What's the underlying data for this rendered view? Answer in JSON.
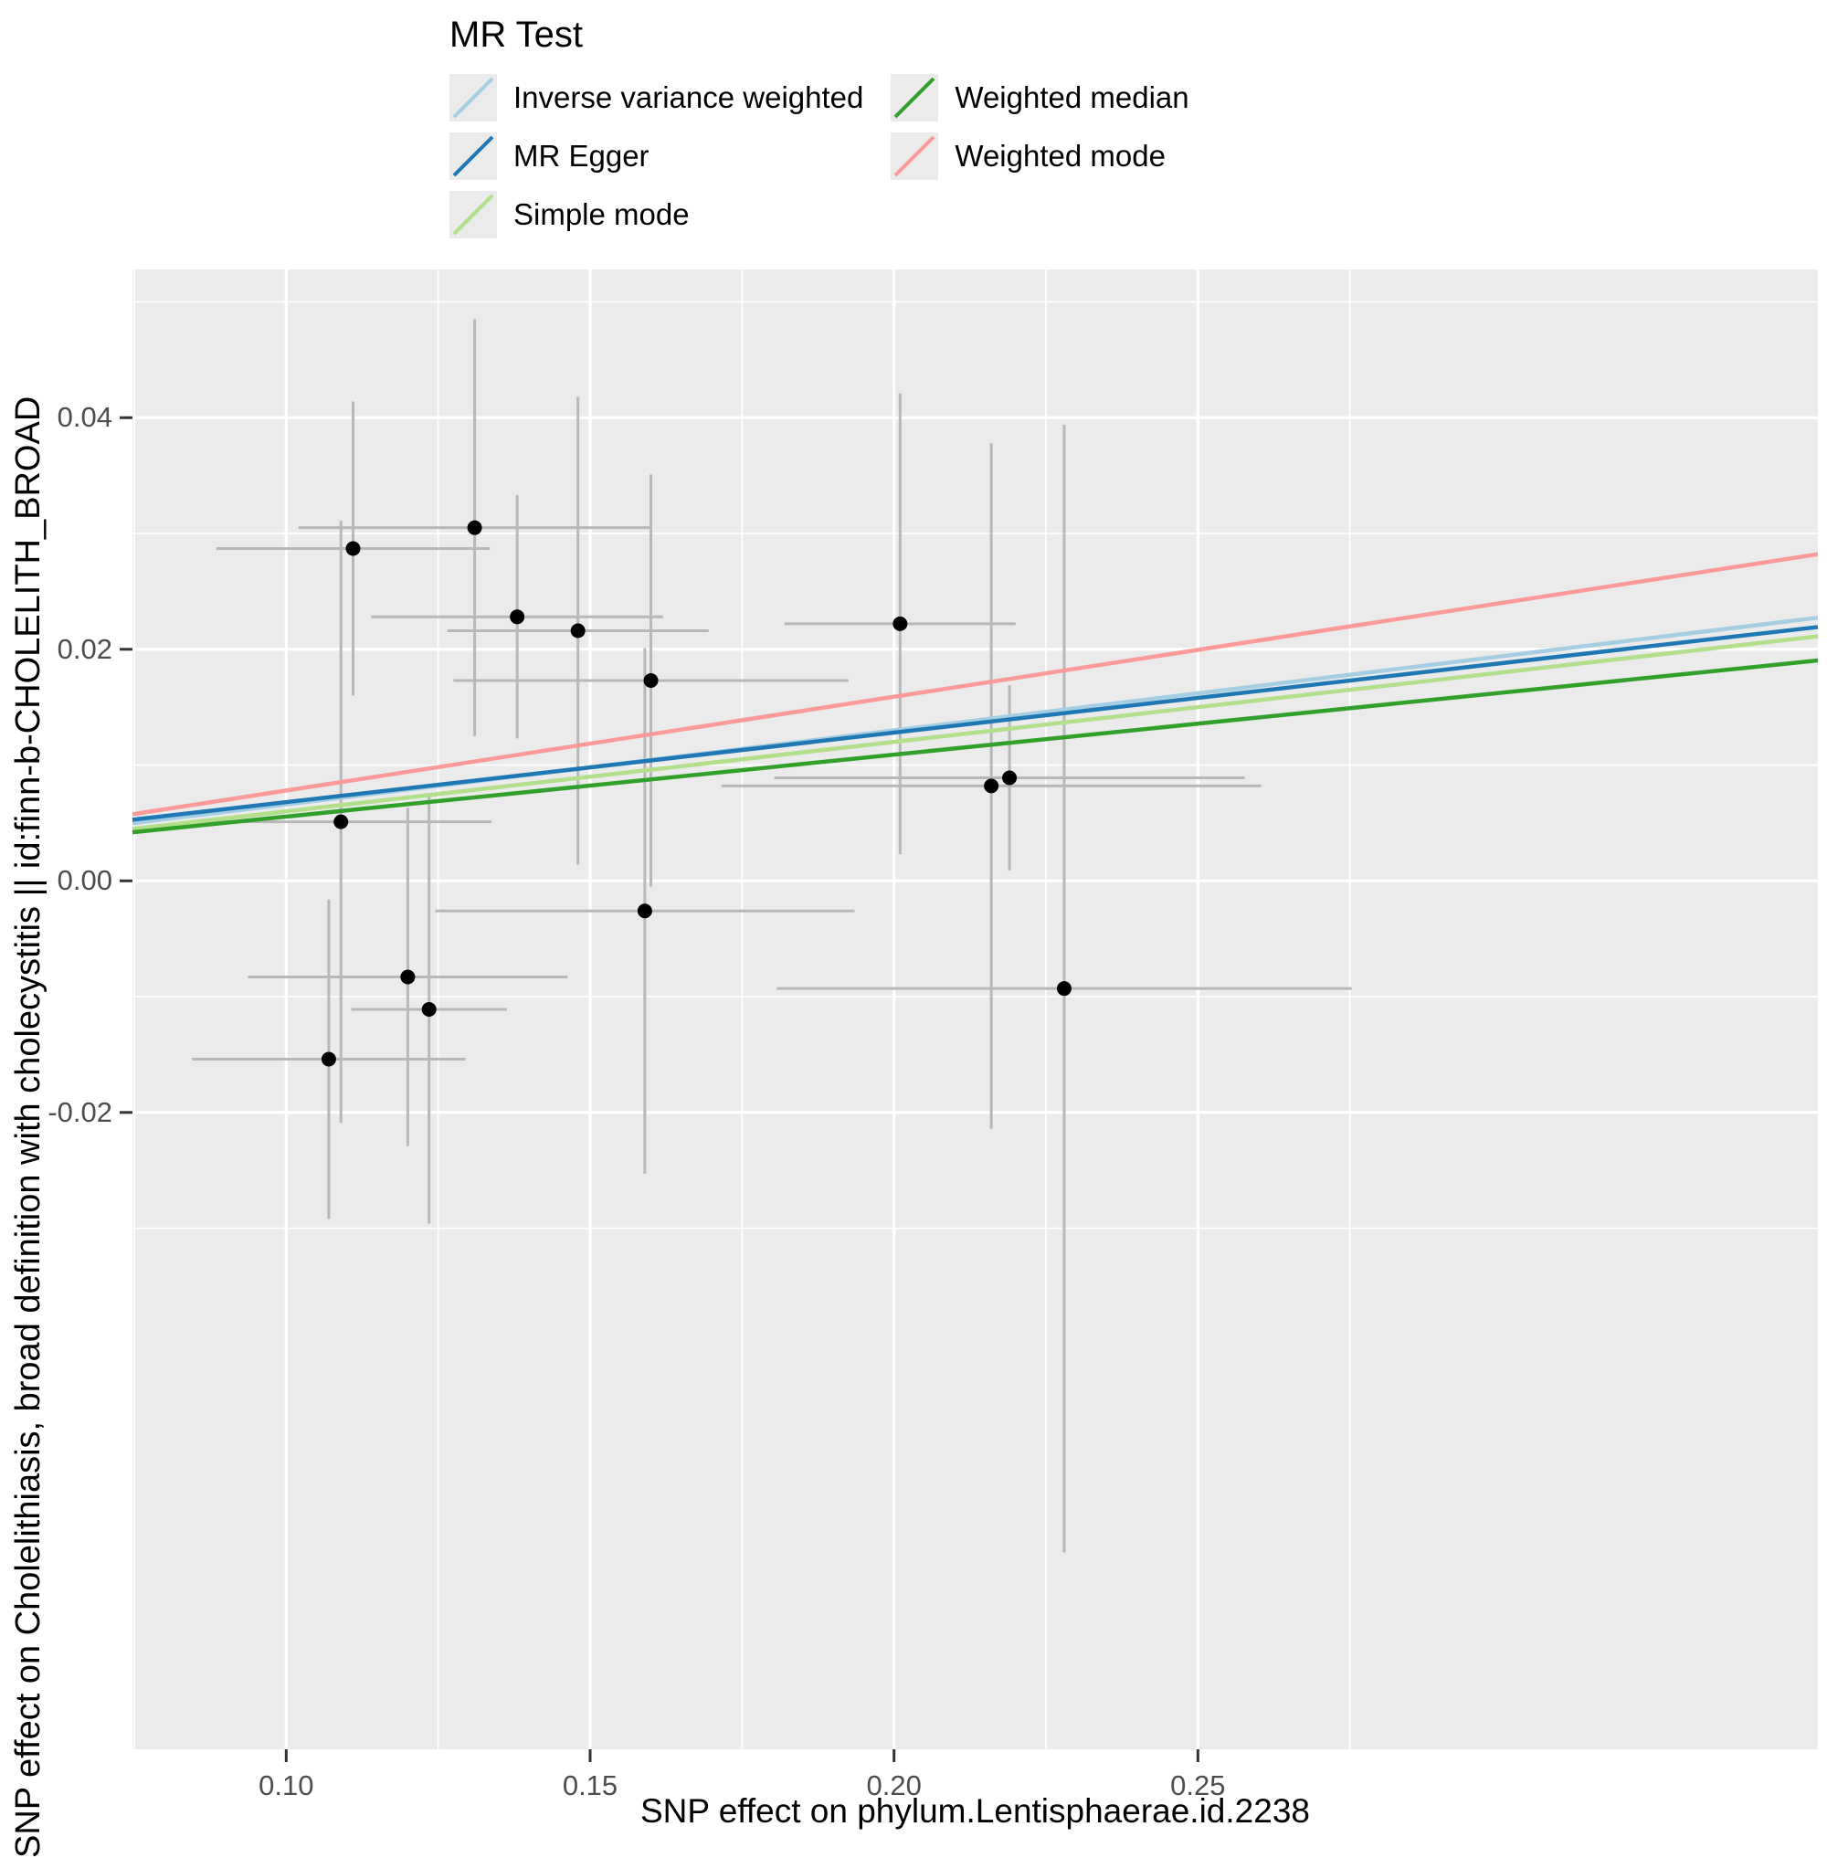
{
  "legend": {
    "title": "MR Test",
    "items": [
      {
        "label": "Inverse variance weighted",
        "color": "#a6cee3",
        "column": 0
      },
      {
        "label": "MR Egger",
        "color": "#1f78b4",
        "column": 0
      },
      {
        "label": "Simple mode",
        "color": "#b2df8a",
        "column": 0
      },
      {
        "label": "Weighted median",
        "color": "#33a02c",
        "column": 1
      },
      {
        "label": "Weighted mode",
        "color": "#fb9a99",
        "column": 1
      }
    ]
  },
  "chart_data": {
    "type": "scatter",
    "title": "",
    "xlabel": "SNP effect on phylum.Lentisphaerae.id.2238",
    "ylabel": "SNP effect on Cholelithiasis, broad definition with cholecystitis || id:finn-b-CHOLELITH_BROAD",
    "xlim": [
      0.0747,
      0.352
    ],
    "ylim": [
      -0.075,
      0.0528
    ],
    "x_ticks": [
      0.1,
      0.15,
      0.2,
      0.25
    ],
    "x_tick_labels": [
      "0.10",
      "0.15",
      "0.20",
      "0.25"
    ],
    "y_ticks": [
      -0.02,
      0.0,
      0.02,
      0.04
    ],
    "y_tick_labels": [
      "-0.02",
      "0.00",
      "0.02",
      "0.04"
    ],
    "grid": "major+minor-white-on-grey",
    "legend_position": "top",
    "points": [
      {
        "x": 0.111,
        "y": 0.0287,
        "xlo": 0.0885,
        "xhi": 0.1335,
        "ylo": 0.016,
        "yhi": 0.0414
      },
      {
        "x": 0.131,
        "y": 0.0305,
        "xlo": 0.102,
        "xhi": 0.16,
        "ylo": 0.0125,
        "yhi": 0.0485
      },
      {
        "x": 0.138,
        "y": 0.0228,
        "xlo": 0.114,
        "xhi": 0.162,
        "ylo": 0.0123,
        "yhi": 0.0333
      },
      {
        "x": 0.148,
        "y": 0.0216,
        "xlo": 0.1265,
        "xhi": 0.1695,
        "ylo": 0.0014,
        "yhi": 0.0418
      },
      {
        "x": 0.16,
        "y": 0.0173,
        "xlo": 0.1275,
        "xhi": 0.1925,
        "ylo": -0.0005,
        "yhi": 0.0351
      },
      {
        "x": 0.201,
        "y": 0.0222,
        "xlo": 0.182,
        "xhi": 0.22,
        "ylo": 0.0023,
        "yhi": 0.0421
      },
      {
        "x": 0.109,
        "y": 0.0051,
        "xlo": 0.0842,
        "xhi": 0.1338,
        "ylo": -0.0209,
        "yhi": 0.0311
      },
      {
        "x": 0.216,
        "y": 0.0082,
        "xlo": 0.1716,
        "xhi": 0.2604,
        "ylo": -0.0214,
        "yhi": 0.0378
      },
      {
        "x": 0.219,
        "y": 0.0089,
        "xlo": 0.1803,
        "xhi": 0.2577,
        "ylo": 0.0009,
        "yhi": 0.0169
      },
      {
        "x": 0.159,
        "y": -0.0026,
        "xlo": 0.1245,
        "xhi": 0.1935,
        "ylo": -0.0253,
        "yhi": 0.0201
      },
      {
        "x": 0.12,
        "y": -0.0083,
        "xlo": 0.0937,
        "xhi": 0.1463,
        "ylo": -0.0229,
        "yhi": 0.0063
      },
      {
        "x": 0.1235,
        "y": -0.0111,
        "xlo": 0.1107,
        "xhi": 0.1363,
        "ylo": -0.0296,
        "yhi": 0.0075
      },
      {
        "x": 0.107,
        "y": -0.0154,
        "xlo": 0.0845,
        "xhi": 0.1295,
        "ylo": -0.0292,
        "yhi": -0.0016
      },
      {
        "x": 0.228,
        "y": -0.0093,
        "xlo": 0.1807,
        "xhi": 0.2753,
        "ylo": -0.058,
        "yhi": 0.0394
      }
    ],
    "lines": [
      {
        "name": "Inverse variance weighted",
        "color": "#a6cee3",
        "intercept": 0.0002,
        "slope": 0.064
      },
      {
        "name": "MR Egger",
        "color": "#1f78b4",
        "intercept": 0.0008,
        "slope": 0.06
      },
      {
        "name": "Simple mode",
        "color": "#b2df8a",
        "intercept": 0.0,
        "slope": 0.06
      },
      {
        "name": "Weighted median",
        "color": "#33a02c",
        "intercept": 0.0002,
        "slope": 0.0535
      },
      {
        "name": "Weighted mode",
        "color": "#fb9a99",
        "intercept": -0.0003,
        "slope": 0.081
      }
    ],
    "styles": {
      "panel_bg": "#ebebeb",
      "grid_color": "#ffffff",
      "errorbar_color": "#b8b8b8",
      "point_color": "#000000",
      "tick_color": "#333333",
      "tick_label_color": "#4d4d4d",
      "legend_key_bg": "#ebebeb"
    }
  }
}
